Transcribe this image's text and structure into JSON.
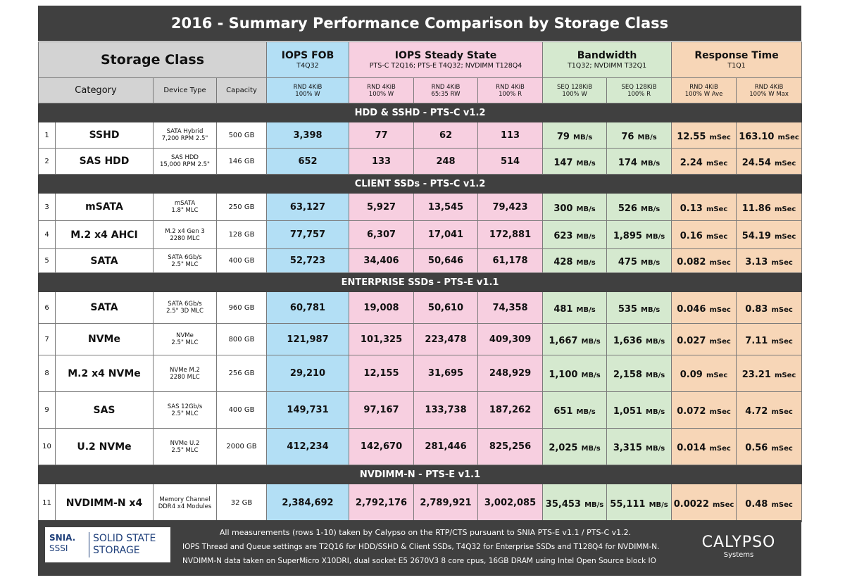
{
  "title": "2016 - Summary Performance Comparison by Storage Class",
  "header": {
    "storage_class": "Storage Class",
    "groups": {
      "iops_fob": {
        "title": "IOPS FOB",
        "sub": "T4Q32"
      },
      "iops_ss": {
        "title": "IOPS Steady State",
        "sub": "PTS-C T2Q16; PTS-E T4Q32; NVDIMM T128Q4"
      },
      "bandwidth": {
        "title": "Bandwidth",
        "sub": "T1Q32; NVDIMM T32Q1"
      },
      "response": {
        "title": "Response Time",
        "sub": "T1Q1"
      }
    },
    "columns": {
      "category": "Category",
      "device_type": "Device Type",
      "capacity": "Capacity",
      "c1": [
        "RND 4KiB",
        "100% W"
      ],
      "c2": [
        "RND 4KiB",
        "100% W"
      ],
      "c3": [
        "RND 4KiB",
        "65:35 RW"
      ],
      "c4": [
        "RND 4KiB",
        "100% R"
      ],
      "c5": [
        "SEQ 128KiB",
        "100% W"
      ],
      "c6": [
        "SEQ 128KiB",
        "100% R"
      ],
      "c7": [
        "RND 4KiB",
        "100% W Ave"
      ],
      "c8": [
        "RND 4KiB",
        "100% W Max"
      ]
    }
  },
  "units": {
    "bw": "MB/s",
    "time": "mSec"
  },
  "sections": [
    {
      "title": "HDD & SSHD - PTS-C v1.2",
      "rows": [
        {
          "num": "1",
          "name": "SSHD",
          "device": [
            "SATA Hybrid",
            "7,200 RPM 2.5\""
          ],
          "capacity": "500 GB",
          "fob": "3,398",
          "ss_w": "77",
          "ss_rw": "62",
          "ss_r": "113",
          "bw_w": "79",
          "bw_r": "76",
          "rt_ave": "12.55",
          "rt_max": "163.10"
        },
        {
          "num": "2",
          "name": "SAS HDD",
          "device": [
            "SAS HDD",
            "15,000 RPM 2.5\""
          ],
          "capacity": "146 GB",
          "fob": "652",
          "ss_w": "133",
          "ss_rw": "248",
          "ss_r": "514",
          "bw_w": "147",
          "bw_r": "174",
          "rt_ave": "2.24",
          "rt_max": "24.54"
        }
      ]
    },
    {
      "title": "CLIENT SSDs - PTS-C v1.2",
      "rows": [
        {
          "num": "3",
          "name": "mSATA",
          "device": [
            "mSATA",
            "1.8\" MLC"
          ],
          "capacity": "250 GB",
          "fob": "63,127",
          "ss_w": "5,927",
          "ss_rw": "13,545",
          "ss_r": "79,423",
          "bw_w": "300",
          "bw_r": "526",
          "rt_ave": "0.13",
          "rt_max": "11.86"
        },
        {
          "num": "4",
          "name": "M.2 x4 AHCI",
          "device": [
            "M.2 x4 Gen 3",
            "2280 MLC"
          ],
          "capacity": "128 GB",
          "fob": "77,757",
          "ss_w": "6,307",
          "ss_rw": "17,041",
          "ss_r": "172,881",
          "bw_w": "623",
          "bw_r": "1,895",
          "rt_ave": "0.16",
          "rt_max": "54.19"
        },
        {
          "num": "5",
          "name": "SATA",
          "device": [
            "SATA 6Gb/s",
            "2.5\" MLC"
          ],
          "capacity": "400 GB",
          "fob": "52,723",
          "ss_w": "34,406",
          "ss_rw": "50,646",
          "ss_r": "61,178",
          "bw_w": "428",
          "bw_r": "475",
          "rt_ave": "0.082",
          "rt_max": "3.13"
        }
      ]
    },
    {
      "title": "ENTERPRISE SSDs - PTS-E v1.1",
      "rows": [
        {
          "num": "6",
          "name": "SATA",
          "device": [
            "SATA 6Gb/s",
            "2.5\" 3D MLC"
          ],
          "capacity": "960 GB",
          "fob": "60,781",
          "ss_w": "19,008",
          "ss_rw": "50,610",
          "ss_r": "74,358",
          "bw_w": "481",
          "bw_r": "535",
          "rt_ave": "0.046",
          "rt_max": "0.83"
        },
        {
          "num": "7",
          "name": "NVMe",
          "device": [
            "NVMe",
            "2.5\" MLC"
          ],
          "capacity": "800 GB",
          "fob": "121,987",
          "ss_w": "101,325",
          "ss_rw": "223,478",
          "ss_r": "409,309",
          "bw_w": "1,667",
          "bw_r": "1,636",
          "rt_ave": "0.027",
          "rt_max": "7.11"
        },
        {
          "num": "8",
          "name": "M.2 x4 NVMe",
          "device": [
            "NVMe M.2",
            "2280 MLC"
          ],
          "capacity": "256 GB",
          "fob": "29,210",
          "ss_w": "12,155",
          "ss_rw": "31,695",
          "ss_r": "248,929",
          "bw_w": "1,100",
          "bw_r": "2,158",
          "rt_ave": "0.09",
          "rt_max": "23.21"
        },
        {
          "num": "9",
          "name": "SAS",
          "device": [
            "SAS 12Gb/s",
            "2.5\" MLC"
          ],
          "capacity": "400 GB",
          "fob": "149,731",
          "ss_w": "97,167",
          "ss_rw": "133,738",
          "ss_r": "187,262",
          "bw_w": "651",
          "bw_r": "1,051",
          "rt_ave": "0.072",
          "rt_max": "4.72"
        },
        {
          "num": "10",
          "name": "U.2 NVMe",
          "device": [
            "NVMe U.2",
            "2.5\" MLC"
          ],
          "capacity": "2000 GB",
          "fob": "412,234",
          "ss_w": "142,670",
          "ss_rw": "281,446",
          "ss_r": "825,256",
          "bw_w": "2,025",
          "bw_r": "3,315",
          "rt_ave": "0.014",
          "rt_max": "0.56"
        }
      ]
    },
    {
      "title": "NVDIMM-N - PTS-E v1.1",
      "rows": [
        {
          "num": "11",
          "name": "NVDIMM-N x4",
          "device": [
            "Memory Channel",
            "DDR4 x4 Modules"
          ],
          "capacity": "32 GB",
          "fob": "2,384,692",
          "ss_w": "2,792,176",
          "ss_rw": "2,789,921",
          "ss_r": "3,002,085",
          "bw_w": "35,453",
          "bw_r": "55,111",
          "rt_ave": "0.0022",
          "rt_max": "0.48"
        }
      ]
    }
  ],
  "footer": {
    "lines": [
      "All measurements (rows 1-10) taken by Calypso on the RTP/CTS pursuant to SNIA PTS-E v1.1 / PTS-C v1.2.",
      "IOPS Thread and Queue settings are T2Q16 for HDD/SSHD & Client SSDs, T4Q32 for Enterprise SSDs and T128Q4 for NVDIMM-N.",
      "NVDIMM-N data taken on SuperMicro X10DRI, dual socket E5 2670V3 8 core cpus, 16GB DRAM using Intel Open Source block IO"
    ],
    "snia_logo": {
      "snia": "SNIA.",
      "sssi": "SSSI",
      "line1": "SOLID STATE",
      "line2": "STORAGE"
    },
    "calypso_logo": {
      "name": "CALYPSO",
      "sub": "Systems"
    }
  }
}
